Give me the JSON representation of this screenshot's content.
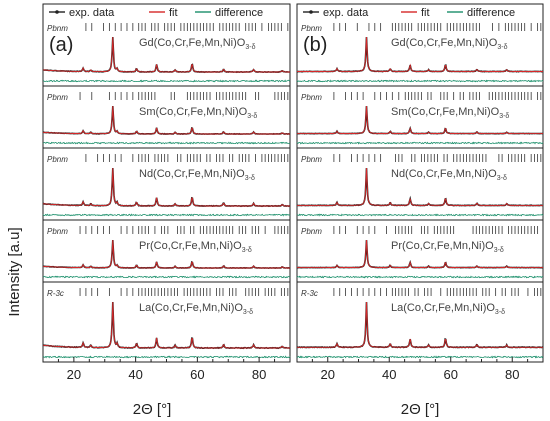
{
  "chart_data": [
    {
      "type": "line",
      "panel_label": "(a)",
      "xlabel": "2Θ [°]",
      "ylabel": "Intensity [a.u]",
      "xlim": [
        10,
        90
      ],
      "xticks": [
        20,
        40,
        60,
        80
      ],
      "legend": [
        "exp. data",
        "fit",
        "difference"
      ],
      "subplots": [
        {
          "compound": "Gd(Co,Cr,Fe,Mn,Ni)O",
          "subscript": "3-δ",
          "phase": "Pbnm"
        },
        {
          "compound": "Sm(Co,Cr,Fe,Mn,Ni)O",
          "subscript": "3-δ",
          "phase": "Pbnm"
        },
        {
          "compound": "Nd(Co,Cr,Fe,Mn,Ni)O",
          "subscript": "3-δ",
          "phase": "Pbnm"
        },
        {
          "compound": "Pr(Co,Cr,Fe,Mn,Ni)O",
          "subscript": "3-δ",
          "phase": "Pbnm"
        },
        {
          "compound": "La(Co,Cr,Fe,Mn,Ni)O",
          "subscript": "3-δ",
          "phase": "R-3c"
        }
      ],
      "peaks": [
        {
          "x": 23,
          "rel": 0.1
        },
        {
          "x": 25.5,
          "rel": 0.05
        },
        {
          "x": 32.6,
          "rel": 1.0
        },
        {
          "x": 34,
          "rel": 0.08
        },
        {
          "x": 40.3,
          "rel": 0.1
        },
        {
          "x": 46.8,
          "rel": 0.22
        },
        {
          "x": 52.8,
          "rel": 0.06
        },
        {
          "x": 58.3,
          "rel": 0.24
        },
        {
          "x": 68.5,
          "rel": 0.08
        },
        {
          "x": 78.2,
          "rel": 0.07
        },
        {
          "x": 87.5,
          "rel": 0.04
        }
      ]
    },
    {
      "type": "line",
      "panel_label": "(b)",
      "xlabel": "2Θ [°]",
      "xlim": [
        10,
        90
      ],
      "xticks": [
        20,
        40,
        60,
        80
      ],
      "legend": [
        "exp. data",
        "fit",
        "difference"
      ],
      "subplots": [
        {
          "compound": "Gd(Co,Cr,Fe,Mn,Ni)O",
          "subscript": "3-δ",
          "phase": "Pbnm"
        },
        {
          "compound": "Sm(Co,Cr,Fe,Mn,Ni)O",
          "subscript": "3-δ",
          "phase": "Pbnm"
        },
        {
          "compound": "Nd(Co,Cr,Fe,Mn,Ni)O",
          "subscript": "3-δ",
          "phase": "Pbnm"
        },
        {
          "compound": "Pr(Co,Cr,Fe,Mn,Ni)O",
          "subscript": "3-δ",
          "phase": "Pbnm"
        },
        {
          "compound": "La(Co,Cr,Fe,Mn,Ni)O",
          "subscript": "3-δ",
          "phase": "R-3c"
        }
      ],
      "peaks": [
        {
          "x": 23,
          "rel": 0.08
        },
        {
          "x": 32.6,
          "rel": 1.0
        },
        {
          "x": 40.3,
          "rel": 0.08
        },
        {
          "x": 46.8,
          "rel": 0.18
        },
        {
          "x": 52.8,
          "rel": 0.05
        },
        {
          "x": 58.3,
          "rel": 0.2
        },
        {
          "x": 68.5,
          "rel": 0.06
        },
        {
          "x": 78.2,
          "rel": 0.05
        }
      ]
    }
  ],
  "colors": {
    "exp": "#222222",
    "fit": "#d62728",
    "difference": "#1a8f6a",
    "ticks": "#333333"
  }
}
